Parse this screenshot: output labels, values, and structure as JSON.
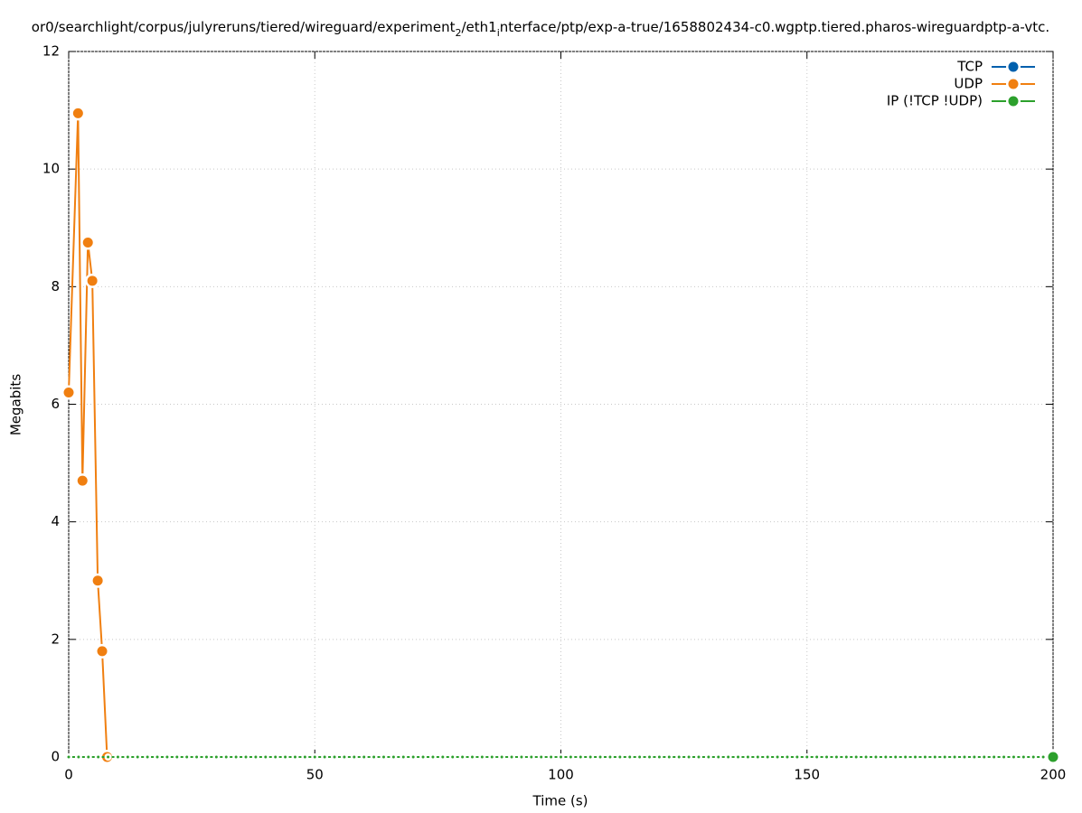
{
  "chart_data": {
    "type": "line",
    "title": [
      "or0/searchlight/corpus/julyreruns/tiered/wireguard/experiment",
      "2",
      "/eth1",
      "i",
      "nterface/ptp/exp-a-true/1658802434-c0.wgptp.tiered.pharos-wireguardptp-a-vtc."
    ],
    "xlabel": "Time (s)",
    "ylabel": "Megabits",
    "xlim": [
      0,
      200
    ],
    "xticks": [
      0,
      50,
      100,
      150,
      200
    ],
    "ylim": [
      0,
      12
    ],
    "yticks": [
      0,
      2,
      4,
      6,
      8,
      10,
      12
    ],
    "grid": true,
    "legend": "top-right",
    "series": [
      {
        "name": "TCP",
        "color": "#0060ad",
        "x": [],
        "values": []
      },
      {
        "name": "UDP",
        "color": "#f07f10",
        "x": [
          0,
          1.9,
          2.8,
          3.9,
          4.8,
          5.9,
          6.8,
          7.8
        ],
        "values": [
          6.2,
          10.95,
          4.7,
          8.75,
          8.1,
          3.0,
          1.8,
          0
        ]
      },
      {
        "name": "IP (!TCP  !UDP)",
        "color": "#2ca02c",
        "x": [
          0,
          2,
          4,
          6,
          8,
          10,
          12,
          14,
          16,
          18,
          20,
          22,
          24,
          26,
          28,
          30,
          32,
          34,
          36,
          38,
          40,
          42,
          44,
          46,
          48,
          50,
          52,
          54,
          56,
          58,
          60,
          62,
          64,
          66,
          68,
          70,
          72,
          74,
          76,
          78,
          80,
          82,
          84,
          86,
          88,
          90,
          92,
          94,
          96,
          98,
          100,
          102,
          104,
          106,
          108,
          110,
          112,
          114,
          116,
          118,
          120,
          122,
          124,
          126,
          128,
          130,
          132,
          134,
          136,
          138,
          140,
          142,
          144,
          146,
          148,
          150,
          152,
          154,
          156,
          158,
          160,
          162,
          164,
          166,
          168,
          170,
          172,
          174,
          176,
          178,
          180,
          182,
          184,
          186,
          188,
          190,
          192,
          194,
          196,
          198,
          200
        ],
        "values": [
          0,
          0,
          0,
          0,
          0,
          0,
          0,
          0,
          0,
          0,
          0,
          0,
          0,
          0,
          0,
          0,
          0,
          0,
          0,
          0,
          0,
          0,
          0,
          0,
          0,
          0,
          0,
          0,
          0,
          0,
          0,
          0,
          0,
          0,
          0,
          0,
          0,
          0,
          0,
          0,
          0,
          0,
          0,
          0,
          0,
          0,
          0,
          0,
          0,
          0,
          0,
          0,
          0,
          0,
          0,
          0,
          0,
          0,
          0,
          0,
          0,
          0,
          0,
          0,
          0,
          0,
          0,
          0,
          0,
          0,
          0,
          0,
          0,
          0,
          0,
          0,
          0,
          0,
          0,
          0,
          0,
          0,
          0,
          0,
          0,
          0,
          0,
          0,
          0,
          0,
          0,
          0,
          0,
          0,
          0,
          0,
          0,
          0,
          0,
          0,
          0
        ]
      }
    ]
  }
}
